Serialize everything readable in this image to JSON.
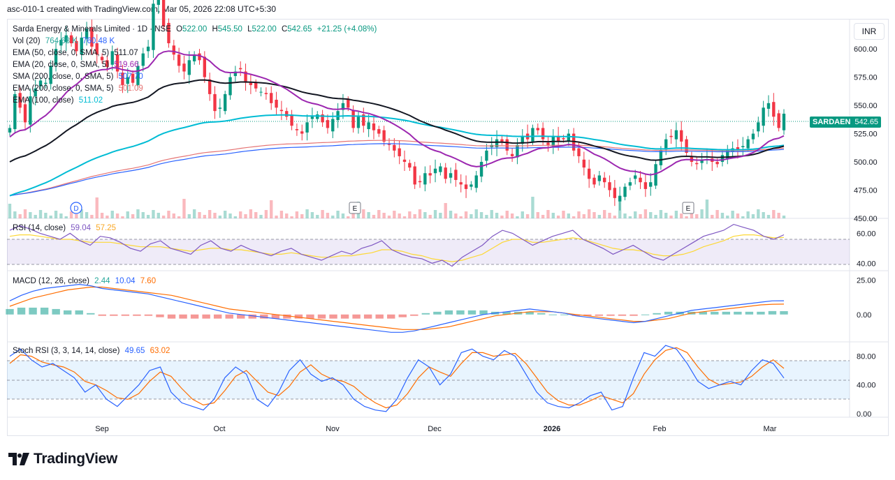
{
  "header": {
    "created_text": "asc-010-1 created with TradingView.com, Mar 05, 2026 22:08 UTC+5:30"
  },
  "currency_button": "INR",
  "price_badge": {
    "ticker": "SARDAEN",
    "price": "542.65"
  },
  "legend": {
    "symbol": "Sarda Energy & Minerals Limited · 1D · NSE",
    "ohlc": {
      "o_label": "O",
      "o": "522.00",
      "h_label": "H",
      "h": "545.50",
      "l_label": "L",
      "l": "522.00",
      "c_label": "C",
      "c": "542.65",
      "change": "+21.25 (+4.08%)"
    },
    "vol": {
      "label": "Vol (20)",
      "v1": "764.68 K",
      "v2": "760.48 K"
    },
    "ema50": {
      "label": "EMA (50, close, 0, SMA, 5)",
      "value": "511.07"
    },
    "ema20": {
      "label": "EMA (20, close, 0, SMA, 5)",
      "value": "519.66"
    },
    "sma200": {
      "label": "SMA (200, close, 0, SMA, 5)",
      "value": "507.70"
    },
    "ema200": {
      "label": "EMA (200, close, 0, SMA, 5)",
      "value": "501.09"
    },
    "ema100": {
      "label": "EMA (100, close)",
      "value": "511.02"
    }
  },
  "rsi_legend": {
    "label": "RSI (14, close)",
    "v1": "59.04",
    "v2": "57.25"
  },
  "macd_legend": {
    "label": "MACD (12, 26, close)",
    "v1": "2.44",
    "v2": "10.04",
    "v3": "7.60"
  },
  "stoch_legend": {
    "label": "Stoch RSI (3, 3, 14, 14, close)",
    "v1": "49.65",
    "v2": "63.02"
  },
  "markers": {
    "dividend": "D",
    "earnings": "E"
  },
  "logo_text": "TradingView",
  "colors": {
    "up": "#089981",
    "down": "#f23645",
    "ema50": "#131722",
    "ema20": "#9c27b0",
    "ema100": "#00bcd4",
    "sma200": "#2962ff",
    "ema200": "#e57373",
    "rsi": "#7e57c2",
    "rsi_ma": "#fdd835",
    "macd": "#2962ff",
    "signal": "#ff6d00",
    "stoch_k": "#2962ff",
    "stoch_d": "#ff6d00"
  },
  "chart_data": [
    {
      "type": "candlestick",
      "title": "Sarda Energy & Minerals Limited · 1D · NSE",
      "y_ticks": [
        "600.00",
        "575.00",
        "550.00",
        "525.00",
        "500.00",
        "475.00",
        "450.00"
      ],
      "ylim": [
        450,
        626
      ],
      "x_ticks": [
        "Sep",
        "Oct",
        "Nov",
        "Dec",
        "2026",
        "Feb",
        "Mar"
      ],
      "last_close": 542.65,
      "closes": [
        530,
        560,
        548,
        535,
        558,
        565,
        572,
        570,
        585,
        600,
        608,
        612,
        605,
        598,
        610,
        618,
        602,
        595,
        590,
        584,
        598,
        580,
        568,
        575,
        570,
        585,
        596,
        602,
        640,
        650,
        620,
        605,
        595,
        585,
        580,
        590,
        595,
        590,
        575,
        560,
        545,
        548,
        560,
        575,
        580,
        582,
        570,
        568,
        565,
        562,
        560,
        552,
        548,
        545,
        540,
        532,
        528,
        525,
        535,
        540,
        542,
        535,
        530,
        538,
        545,
        552,
        548,
        530,
        540,
        532,
        535,
        528,
        525,
        518,
        515,
        510,
        505,
        500,
        495,
        480,
        482,
        490,
        488,
        494,
        496,
        485,
        490,
        484,
        480,
        476,
        480,
        488,
        500,
        510,
        515,
        520,
        518,
        510,
        505,
        515,
        522,
        520,
        530,
        528,
        520,
        515,
        522,
        518,
        520,
        525,
        510,
        505,
        495,
        485,
        480,
        488,
        482,
        475,
        468,
        470,
        478,
        482,
        488,
        482,
        476,
        482,
        498,
        510,
        520,
        522,
        528,
        518,
        508,
        500,
        498,
        502,
        505,
        500,
        498,
        506,
        510,
        512,
        510,
        514,
        520,
        525,
        535,
        548,
        552,
        540,
        530,
        542.65
      ]
    },
    {
      "type": "line",
      "title": "RSI (14, close)",
      "y_ticks": [
        "60.00",
        "40.00"
      ],
      "ylim": [
        35,
        70
      ],
      "series": [
        {
          "name": "RSI",
          "values": [
            62,
            65,
            63,
            60,
            58,
            56,
            60,
            55,
            52,
            58,
            57,
            54,
            50,
            48,
            53,
            55,
            50,
            48,
            46,
            52,
            55,
            50,
            48,
            52,
            49,
            47,
            45,
            48,
            50,
            46,
            44,
            42,
            45,
            48,
            46,
            50,
            52,
            55,
            49,
            46,
            44,
            43,
            40,
            42,
            38,
            44,
            48,
            52,
            58,
            62,
            60,
            56,
            52,
            55,
            58,
            60,
            62,
            56,
            53,
            50,
            46,
            49,
            52,
            48,
            44,
            42,
            46,
            50,
            54,
            58,
            60,
            62,
            66,
            64,
            62,
            58,
            56,
            59.04
          ]
        },
        {
          "name": "RSI MA",
          "values": [
            58,
            59,
            59,
            58,
            57,
            56,
            56,
            55,
            54,
            54,
            54,
            53,
            52,
            51,
            51,
            51,
            50,
            49,
            48,
            49,
            50,
            50,
            49,
            49,
            48,
            47,
            46,
            46,
            47,
            46,
            45,
            44,
            44,
            45,
            45,
            46,
            47,
            49,
            49,
            48,
            46,
            45,
            43,
            42,
            41,
            42,
            44,
            46,
            50,
            54,
            56,
            56,
            54,
            54,
            55,
            56,
            57,
            56,
            54,
            52,
            50,
            49,
            49,
            48,
            46,
            45,
            45,
            46,
            48,
            51,
            53,
            55,
            58,
            59,
            59,
            58,
            57,
            57.25
          ]
        }
      ]
    },
    {
      "type": "line",
      "title": "MACD (12, 26, close)",
      "y_ticks": [
        "25.00",
        "0.00"
      ],
      "ylim": [
        -20,
        32
      ],
      "series": [
        {
          "name": "MACD",
          "values": [
            10,
            14,
            17,
            19,
            20,
            21,
            22,
            21,
            19,
            18,
            17,
            16,
            15,
            13,
            11,
            9,
            7,
            5,
            3,
            1,
            0,
            -1,
            -2,
            -3,
            -4,
            -5,
            -6,
            -7,
            -8,
            -9,
            -10,
            -11,
            -12,
            -13,
            -13,
            -12,
            -10,
            -8,
            -6,
            -4,
            -2,
            0,
            1,
            2,
            3,
            4,
            3,
            2,
            1,
            -1,
            -2,
            -3,
            -4,
            -5,
            -6,
            -5,
            -3,
            -1,
            1,
            3,
            4,
            5,
            6,
            7,
            8,
            9,
            10,
            10.04
          ]
        },
        {
          "name": "Signal",
          "values": [
            6,
            9,
            12,
            14,
            16,
            18,
            19,
            20,
            20,
            19,
            18,
            17,
            16,
            15,
            14,
            12,
            10,
            8,
            6,
            4,
            3,
            2,
            1,
            0,
            -1,
            -2,
            -3,
            -4,
            -5,
            -6,
            -7,
            -8,
            -9,
            -10,
            -11,
            -11,
            -11,
            -10,
            -9,
            -7,
            -5,
            -3,
            -1,
            0,
            1,
            2,
            2,
            2,
            1,
            0,
            -1,
            -2,
            -3,
            -4,
            -5,
            -5,
            -4,
            -3,
            -1,
            1,
            2,
            3,
            4,
            5,
            6,
            7,
            7.5,
            7.6
          ]
        },
        {
          "name": "Histogram",
          "values": [
            4,
            5,
            5,
            5,
            4,
            3,
            3,
            1,
            -1,
            -1,
            -1,
            -1,
            -1,
            -2,
            -3,
            -3,
            -3,
            -3,
            -3,
            -3,
            -3,
            -3,
            -3,
            -3,
            -3,
            -3,
            -3,
            -3,
            -3,
            -3,
            -3,
            -3,
            -3,
            -3,
            -2,
            -1,
            1,
            2,
            3,
            3,
            3,
            3,
            2,
            2,
            2,
            2,
            1,
            0,
            0,
            -1,
            -1,
            -1,
            -1,
            -1,
            -1,
            0,
            1,
            2,
            2,
            2,
            2,
            2,
            2,
            2,
            2,
            2,
            2.5,
            2.44
          ]
        }
      ]
    },
    {
      "type": "line",
      "title": "Stoch RSI (3, 3, 14, 14, close)",
      "y_ticks": [
        "80.00",
        "40.00",
        "0.00"
      ],
      "ylim": [
        -5,
        100
      ],
      "series": [
        {
          "name": "K",
          "values": [
            80,
            90,
            75,
            65,
            70,
            60,
            50,
            30,
            40,
            20,
            10,
            25,
            40,
            60,
            65,
            30,
            15,
            10,
            5,
            20,
            50,
            65,
            55,
            20,
            10,
            30,
            60,
            75,
            55,
            45,
            50,
            40,
            20,
            10,
            5,
            3,
            20,
            50,
            75,
            65,
            40,
            55,
            85,
            90,
            80,
            75,
            88,
            80,
            55,
            30,
            15,
            10,
            8,
            15,
            25,
            30,
            5,
            10,
            50,
            85,
            80,
            95,
            90,
            70,
            45,
            35,
            40,
            45,
            40,
            60,
            75,
            70,
            49.65
          ]
        },
        {
          "name": "D",
          "values": [
            70,
            82,
            80,
            72,
            68,
            65,
            58,
            45,
            40,
            32,
            22,
            20,
            28,
            45,
            58,
            52,
            35,
            20,
            12,
            15,
            32,
            52,
            60,
            45,
            30,
            25,
            38,
            58,
            68,
            55,
            48,
            45,
            38,
            25,
            15,
            8,
            12,
            28,
            50,
            65,
            58,
            52,
            70,
            85,
            85,
            80,
            82,
            84,
            70,
            50,
            30,
            18,
            12,
            12,
            18,
            25,
            20,
            15,
            28,
            55,
            75,
            88,
            92,
            85,
            65,
            48,
            40,
            42,
            44,
            52,
            65,
            75,
            63.02
          ]
        }
      ]
    }
  ]
}
